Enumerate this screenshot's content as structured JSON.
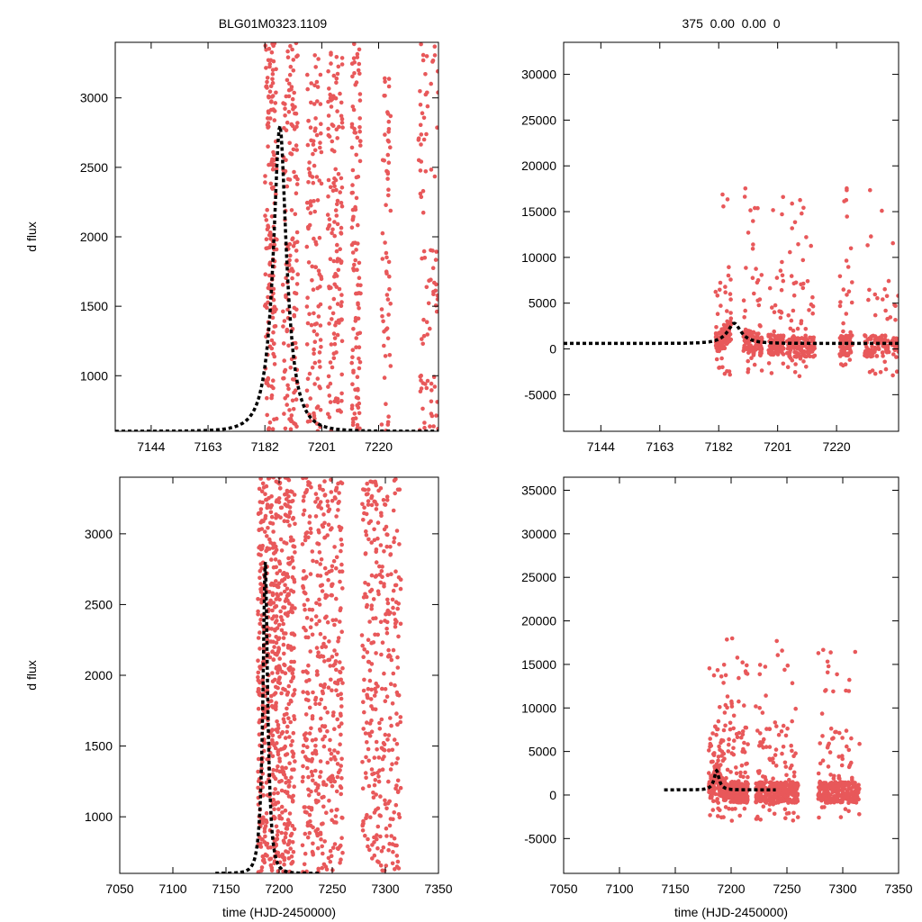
{
  "chart_data": [
    {
      "type": "scatter",
      "panel": "top-left",
      "title": "BLG01M0323.1109",
      "xlabel": "",
      "ylabel": "d flux",
      "xlim": [
        7132,
        7240
      ],
      "ylim": [
        600,
        3400
      ],
      "xticks": [
        7144,
        7163,
        7182,
        7201,
        7220
      ],
      "yticks": [
        1000,
        1500,
        2000,
        2500,
        3000
      ],
      "point_color": "#e8585a",
      "model_color": "#000000",
      "model": {
        "peak_t": 7187,
        "peak_flux": 2800,
        "base_flux": 600,
        "tE": 6,
        "x_range": [
          7132,
          7240
        ]
      },
      "clusters": [
        {
          "t0": 7182,
          "t1": 7186,
          "n": 160
        },
        {
          "t0": 7188,
          "t1": 7193,
          "n": 150
        },
        {
          "t0": 7196,
          "t1": 7201,
          "n": 120
        },
        {
          "t0": 7203,
          "t1": 7208,
          "n": 140
        },
        {
          "t0": 7211,
          "t1": 7214,
          "n": 110
        },
        {
          "t0": 7221,
          "t1": 7224,
          "n": 60
        },
        {
          "t0": 7233,
          "t1": 7240,
          "n": 90
        }
      ]
    },
    {
      "type": "scatter",
      "panel": "top-right",
      "title": "375  0.00  0.00  0",
      "xlabel": "",
      "ylabel": "",
      "xlim": [
        7132,
        7240
      ],
      "ylim": [
        -9000,
        33500
      ],
      "xticks": [
        7144,
        7163,
        7182,
        7201,
        7220
      ],
      "yticks": [
        -5000,
        0,
        5000,
        10000,
        15000,
        20000,
        25000,
        30000
      ],
      "point_color": "#e8585a",
      "model_color": "#000000",
      "model": {
        "peak_t": 7187,
        "peak_flux": 2800,
        "base_flux": 600,
        "tE": 6,
        "x_range": [
          7132,
          7240
        ]
      },
      "clusters": [
        {
          "t0": 7181,
          "t1": 7186,
          "n": 140
        },
        {
          "t0": 7190,
          "t1": 7196,
          "n": 130
        },
        {
          "t0": 7198,
          "t1": 7203,
          "n": 120
        },
        {
          "t0": 7204,
          "t1": 7213,
          "n": 160
        },
        {
          "t0": 7221,
          "t1": 7225,
          "n": 90
        },
        {
          "t0": 7229,
          "t1": 7240,
          "n": 140
        }
      ]
    },
    {
      "type": "scatter",
      "panel": "bottom-left",
      "title": "",
      "xlabel": "time (HJD-2450000)",
      "ylabel": "d flux",
      "xlim": [
        7050,
        7350
      ],
      "ylim": [
        600,
        3400
      ],
      "xticks": [
        7050,
        7100,
        7150,
        7200,
        7250,
        7300,
        7350
      ],
      "yticks": [
        1000,
        1500,
        2000,
        2500,
        3000
      ],
      "point_color": "#e8585a",
      "model_color": "#000000",
      "model": {
        "peak_t": 7187,
        "peak_flux": 2800,
        "base_flux": 600,
        "tE": 6,
        "x_range": [
          7140,
          7240
        ]
      },
      "clusters": [
        {
          "t0": 7180,
          "t1": 7200,
          "n": 380
        },
        {
          "t0": 7200,
          "t1": 7215,
          "n": 260
        },
        {
          "t0": 7222,
          "t1": 7232,
          "n": 120
        },
        {
          "t0": 7234,
          "t1": 7260,
          "n": 280
        },
        {
          "t0": 7278,
          "t1": 7315,
          "n": 320
        }
      ]
    },
    {
      "type": "scatter",
      "panel": "bottom-right",
      "title": "",
      "xlabel": "time (HJD-2450000)",
      "ylabel": "",
      "xlim": [
        7050,
        7350
      ],
      "ylim": [
        -9000,
        36500
      ],
      "xticks": [
        7050,
        7100,
        7150,
        7200,
        7250,
        7300,
        7350
      ],
      "yticks": [
        -5000,
        0,
        5000,
        10000,
        15000,
        20000,
        25000,
        30000,
        35000
      ],
      "point_color": "#e8585a",
      "model_color": "#000000",
      "model": {
        "peak_t": 7187,
        "peak_flux": 2800,
        "base_flux": 600,
        "tE": 6,
        "x_range": [
          7140,
          7240
        ]
      },
      "clusters": [
        {
          "t0": 7180,
          "t1": 7200,
          "n": 320
        },
        {
          "t0": 7200,
          "t1": 7215,
          "n": 220
        },
        {
          "t0": 7222,
          "t1": 7232,
          "n": 110
        },
        {
          "t0": 7234,
          "t1": 7260,
          "n": 260
        },
        {
          "t0": 7278,
          "t1": 7315,
          "n": 300
        }
      ]
    }
  ]
}
